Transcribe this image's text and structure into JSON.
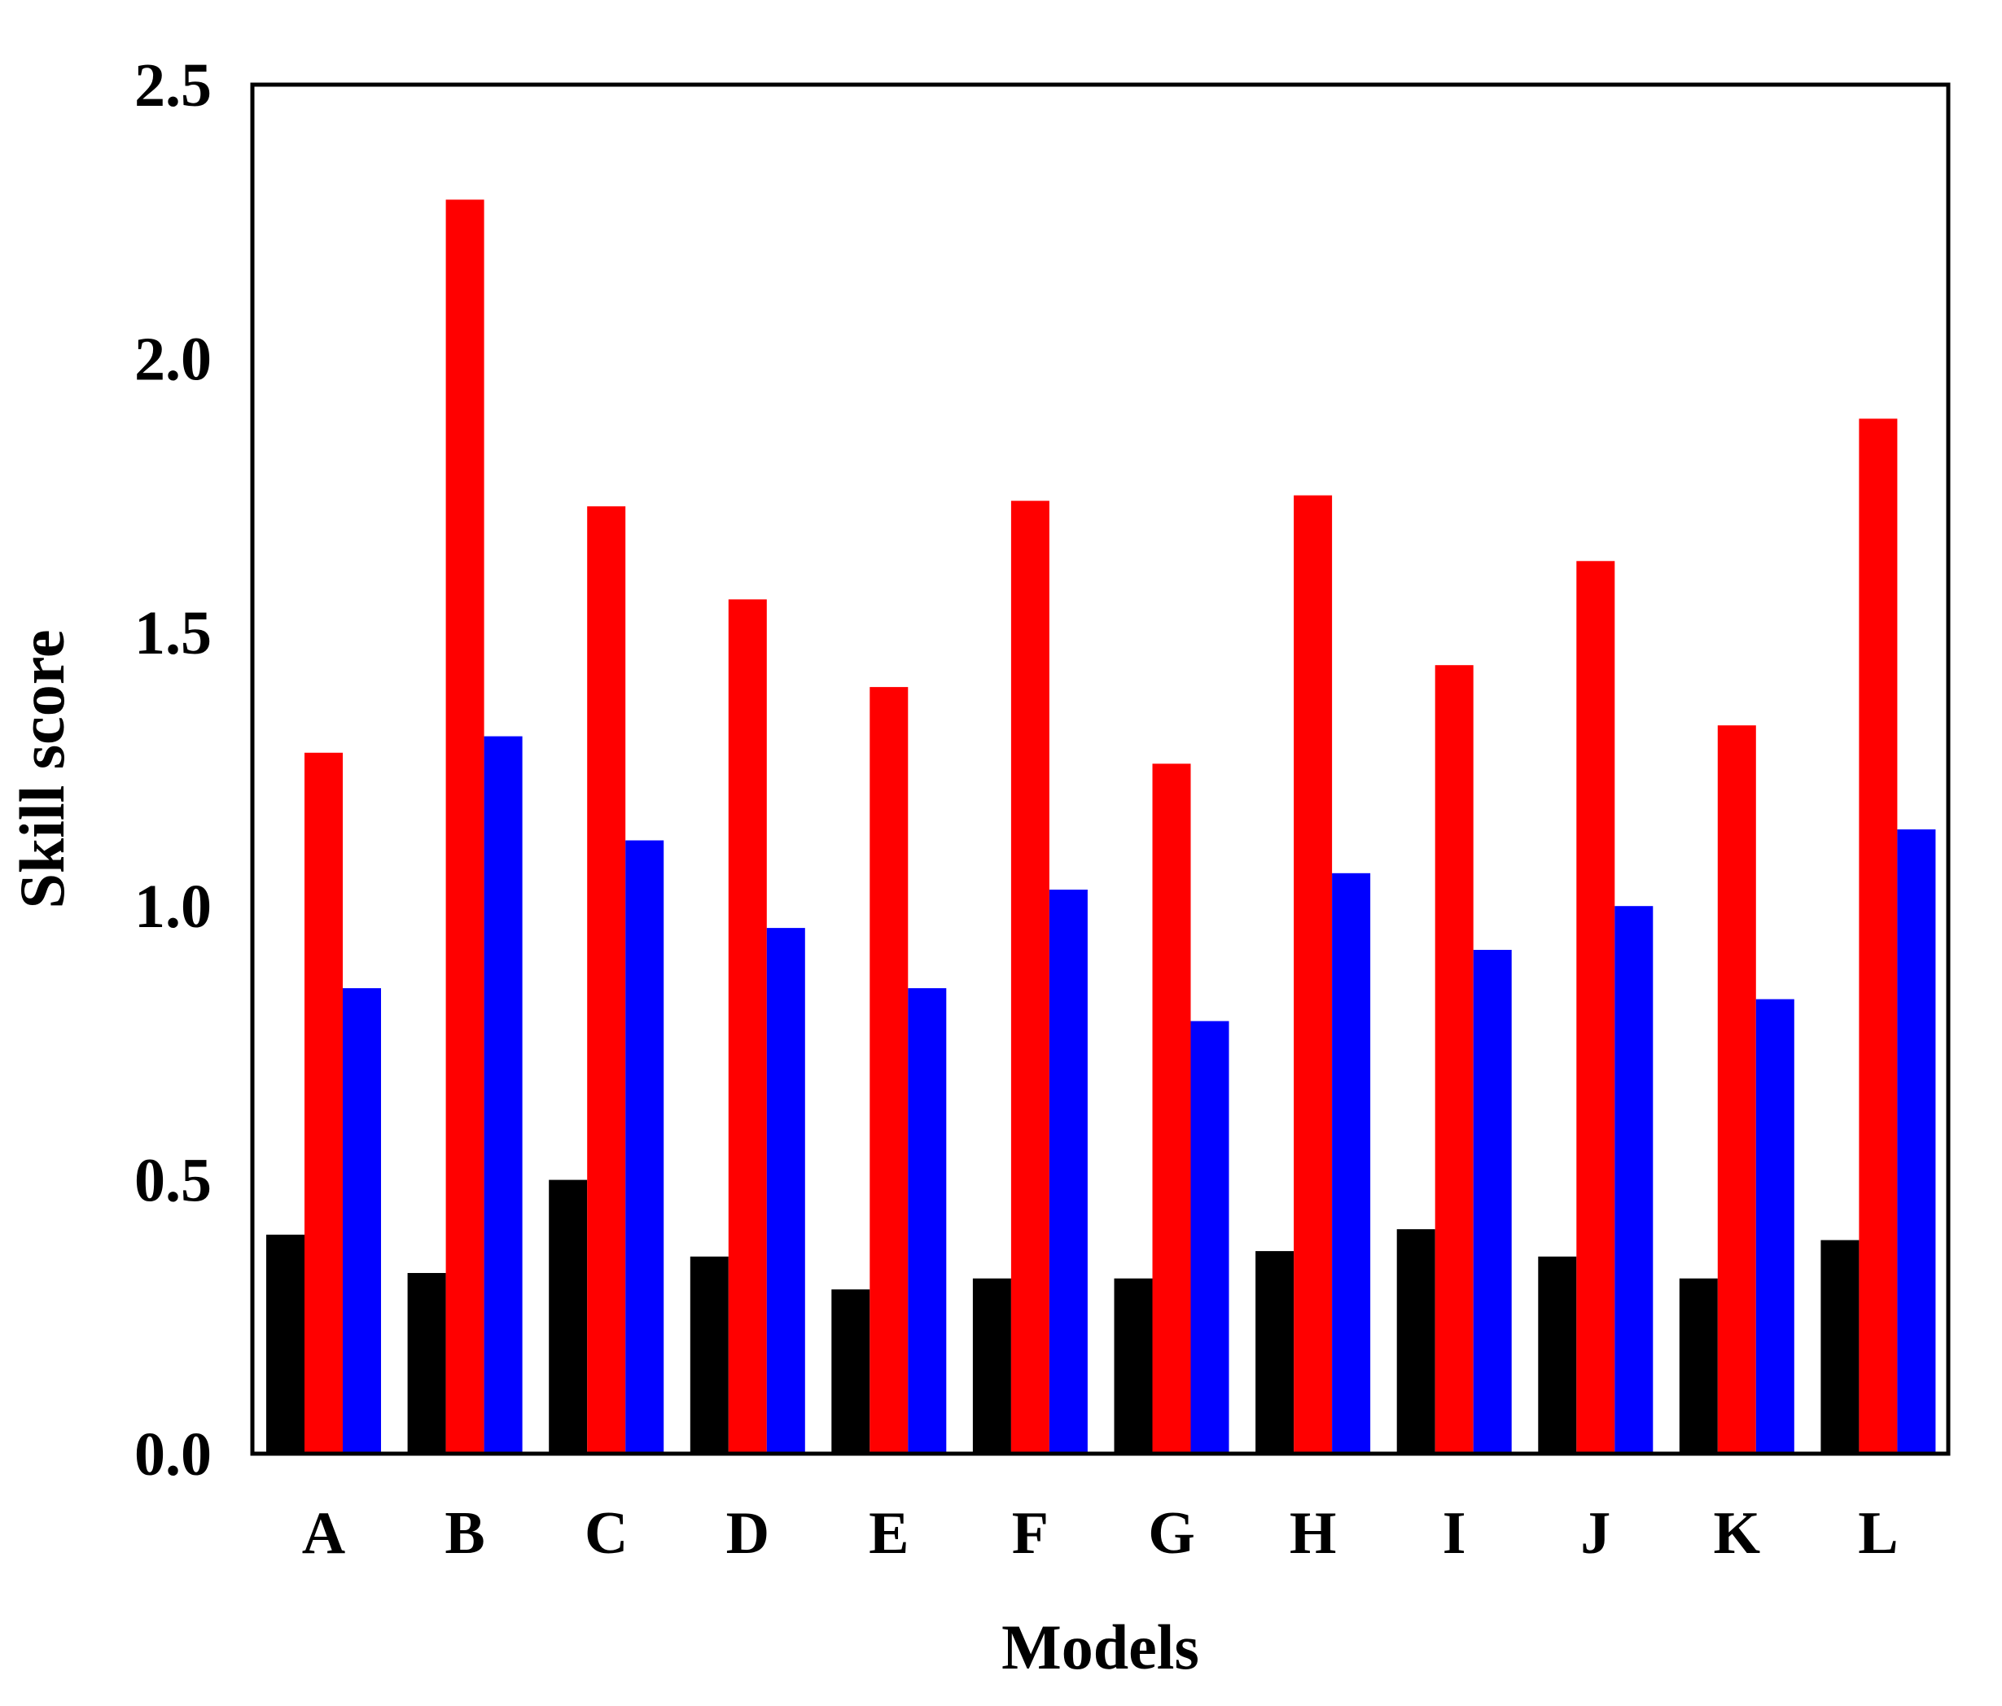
{
  "chart_data": {
    "type": "bar",
    "title": "",
    "xlabel": "Models",
    "ylabel": "Skill score",
    "ylim": [
      0,
      2.5
    ],
    "yticks": [
      "0.0",
      "0.5",
      "1.0",
      "1.5",
      "2.0",
      "2.5"
    ],
    "grid": false,
    "legend": "none",
    "categories": [
      "A",
      "B",
      "C",
      "D",
      "E",
      "F",
      "G",
      "H",
      "I",
      "J",
      "K",
      "L"
    ],
    "series": [
      {
        "color": "#000000",
        "values": [
          0.4,
          0.33,
          0.5,
          0.36,
          0.3,
          0.32,
          0.32,
          0.37,
          0.41,
          0.36,
          0.32,
          0.39
        ]
      },
      {
        "color": "#ff0000",
        "values": [
          1.28,
          2.29,
          1.73,
          1.56,
          1.4,
          1.74,
          1.26,
          1.75,
          1.44,
          1.63,
          1.33,
          1.89
        ]
      },
      {
        "color": "#0000ff",
        "values": [
          0.85,
          1.31,
          1.12,
          0.96,
          0.85,
          1.03,
          0.79,
          1.06,
          0.92,
          1.0,
          0.83,
          1.14
        ]
      }
    ]
  }
}
